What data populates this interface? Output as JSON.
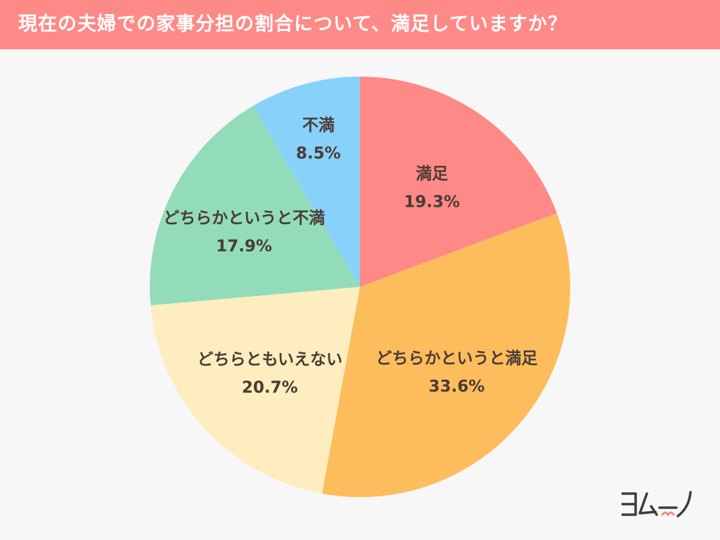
{
  "title": "現在の夫婦での家事分担の割合について、満足していますか？",
  "colors": {
    "title_bar": "#fd8a86",
    "background": "#f7f7f7",
    "label_text": "#4a3b35"
  },
  "chart_data": {
    "type": "pie",
    "start": "12 o'clock",
    "direction": "clockwise",
    "slices": [
      {
        "label": "満足",
        "value": 19.3,
        "display": "19.3%",
        "color": "#fd8a86"
      },
      {
        "label": "どちらかというと満足",
        "value": 33.6,
        "display": "33.6%",
        "color": "#fdbd5d"
      },
      {
        "label": "どちらともいえない",
        "value": 20.7,
        "display": "20.7%",
        "color": "#feedbf"
      },
      {
        "label": "どちらかというと不満",
        "value": 17.9,
        "display": "17.9%",
        "color": "#93dcba"
      },
      {
        "label": "不満",
        "value": 8.5,
        "display": "8.5%",
        "color": "#87d1fb"
      }
    ]
  },
  "logo": {
    "text": "ヨムーノ",
    "icon": "yomuuno-logo-icon",
    "color": "#3d3d3d",
    "accent": "#fd8a86"
  }
}
